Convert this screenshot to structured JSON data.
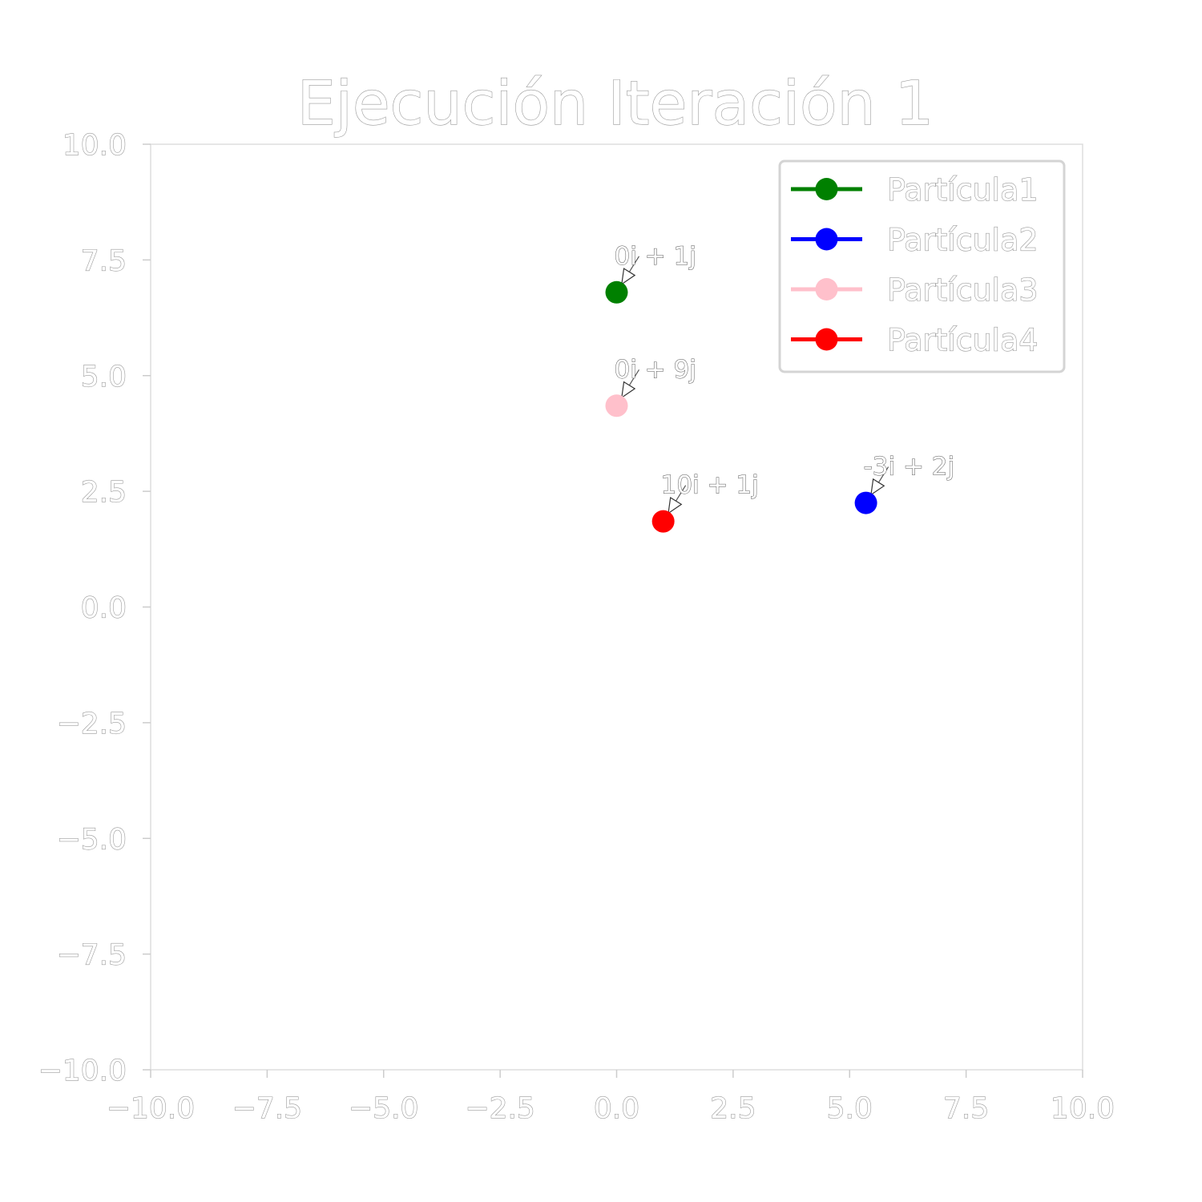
{
  "chart_data": {
    "type": "scatter",
    "title": "Ejecución Iteración 1",
    "xlabel": "",
    "ylabel": "",
    "xlim": [
      -10,
      10
    ],
    "ylim": [
      -10,
      10
    ],
    "xticks": [
      "−10.0",
      "−7.5",
      "−5.0",
      "−2.5",
      "0.0",
      "2.5",
      "5.0",
      "7.5",
      "10.0"
    ],
    "yticks": [
      "−10.0",
      "−7.5",
      "−5.0",
      "−2.5",
      "0.0",
      "2.5",
      "5.0",
      "7.5",
      "10.0"
    ],
    "grid": false,
    "legend_position": "top-right",
    "series": [
      {
        "name": "Partícula1",
        "color": "#008000",
        "x": 0.0,
        "y": 6.8,
        "label": "0i + 1j"
      },
      {
        "name": "Partícula2",
        "color": "#0000ff",
        "x": 5.35,
        "y": 2.25,
        "label": "-3i + 2j"
      },
      {
        "name": "Partícula3",
        "color": "#ffc0cb",
        "x": 0.0,
        "y": 4.35,
        "label": "0i + 9j"
      },
      {
        "name": "Partícula4",
        "color": "#ff0000",
        "x": 1.0,
        "y": 1.85,
        "label": "10i + 1j"
      }
    ]
  }
}
